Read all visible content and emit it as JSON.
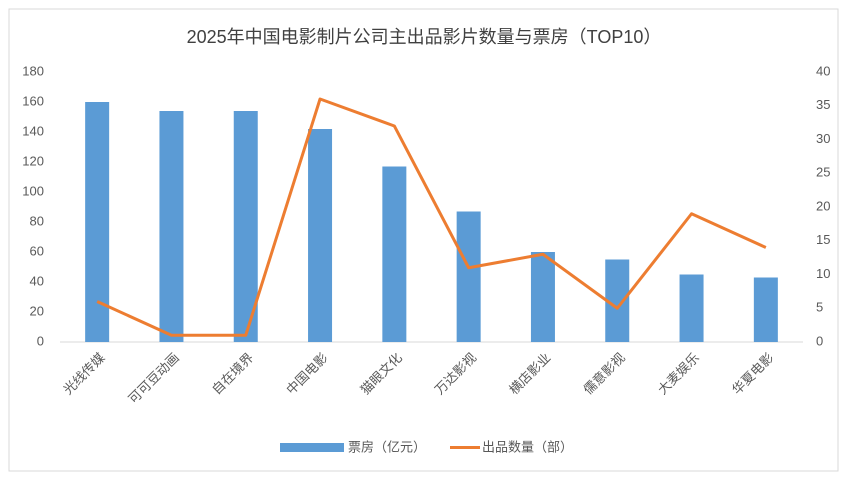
{
  "chart_data": {
    "type": "combo",
    "title": "2025年中国电影制片公司主出品影片数量与票房（TOP10）",
    "categories": [
      "光线传媒",
      "可可豆动画",
      "自在境界",
      "中国电影",
      "猫眼文化",
      "万达影视",
      "横店影业",
      "儒意影视",
      "大麦娱乐",
      "华夏电影"
    ],
    "series": [
      {
        "name": "票房（亿元）",
        "type": "bar",
        "color": "#5b9bd5",
        "values": [
          160,
          154,
          154,
          142,
          117,
          87,
          60,
          55,
          45,
          43
        ]
      },
      {
        "name": "出品数量（部）",
        "type": "line",
        "axis": "y2",
        "color": "#ed7d31",
        "values": [
          6,
          1,
          1,
          36,
          32,
          11,
          13,
          5,
          19,
          14
        ]
      }
    ],
    "ylim": [
      0,
      180
    ],
    "yticks": [
      0,
      20,
      40,
      60,
      80,
      100,
      120,
      140,
      160,
      180
    ],
    "y2lim": [
      0,
      40
    ],
    "y2ticks": [
      0,
      5,
      10,
      15,
      20,
      25,
      30,
      35,
      40
    ],
    "grid": false,
    "legend": "bottom"
  }
}
